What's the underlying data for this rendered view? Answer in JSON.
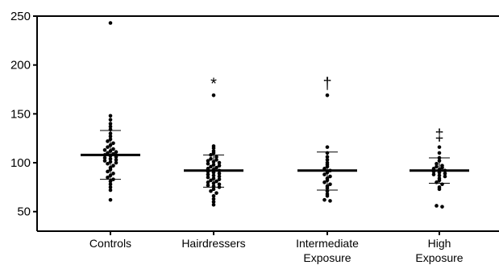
{
  "chart_data": {
    "type": "scatter",
    "title": "",
    "xlabel": "",
    "ylabel": "",
    "ylim": [
      30,
      250
    ],
    "yticks": [
      50,
      100,
      150,
      200,
      250
    ],
    "grid": false,
    "categories": [
      {
        "line1": "Controls",
        "line2": ""
      },
      {
        "line1": "Hairdressers",
        "line2": ""
      },
      {
        "line1": "Intermediate",
        "line2": "Exposure"
      },
      {
        "line1": "High",
        "line2": "Exposure"
      }
    ],
    "groups": [
      {
        "category": "Controls",
        "mean": 108,
        "sd_low": 83,
        "sd_high": 133,
        "significance": "",
        "points": [
          243,
          148,
          144,
          140,
          137,
          134,
          130,
          127,
          124,
          122,
          120,
          118,
          116,
          114,
          113,
          112,
          111,
          110,
          109,
          108,
          107,
          106,
          105,
          104,
          103,
          102,
          101,
          100,
          99,
          97,
          95,
          93,
          91,
          89,
          87,
          85,
          83,
          81,
          78,
          75,
          72,
          62
        ]
      },
      {
        "category": "Hairdressers",
        "mean": 92,
        "sd_low": 75,
        "sd_high": 108,
        "significance": "*",
        "points": [
          169,
          117,
          115,
          112,
          110,
          108,
          106,
          104,
          103,
          102,
          101,
          100,
          99,
          98,
          97,
          96,
          95,
          94,
          93,
          92,
          91,
          90,
          89,
          88,
          87,
          86,
          85,
          84,
          83,
          82,
          81,
          80,
          79,
          78,
          77,
          76,
          75,
          73,
          71,
          69,
          66,
          63,
          60,
          57
        ]
      },
      {
        "category": "Intermediate Exposure",
        "mean": 92,
        "sd_low": 72,
        "sd_high": 111,
        "significance": "†",
        "points": [
          169,
          116,
          110,
          106,
          103,
          100,
          98,
          96,
          94,
          92,
          90,
          88,
          86,
          84,
          82,
          80,
          78,
          76,
          74,
          71,
          68,
          66,
          62,
          61
        ]
      },
      {
        "category": "High Exposure",
        "mean": 92,
        "sd_low": 79,
        "sd_high": 105,
        "significance": "‡",
        "points": [
          116,
          110,
          105,
          102,
          99,
          97,
          96,
          95,
          94,
          93,
          92,
          91,
          90,
          89,
          88,
          87,
          86,
          84,
          82,
          80,
          78,
          75,
          73,
          56,
          55
        ]
      }
    ]
  }
}
